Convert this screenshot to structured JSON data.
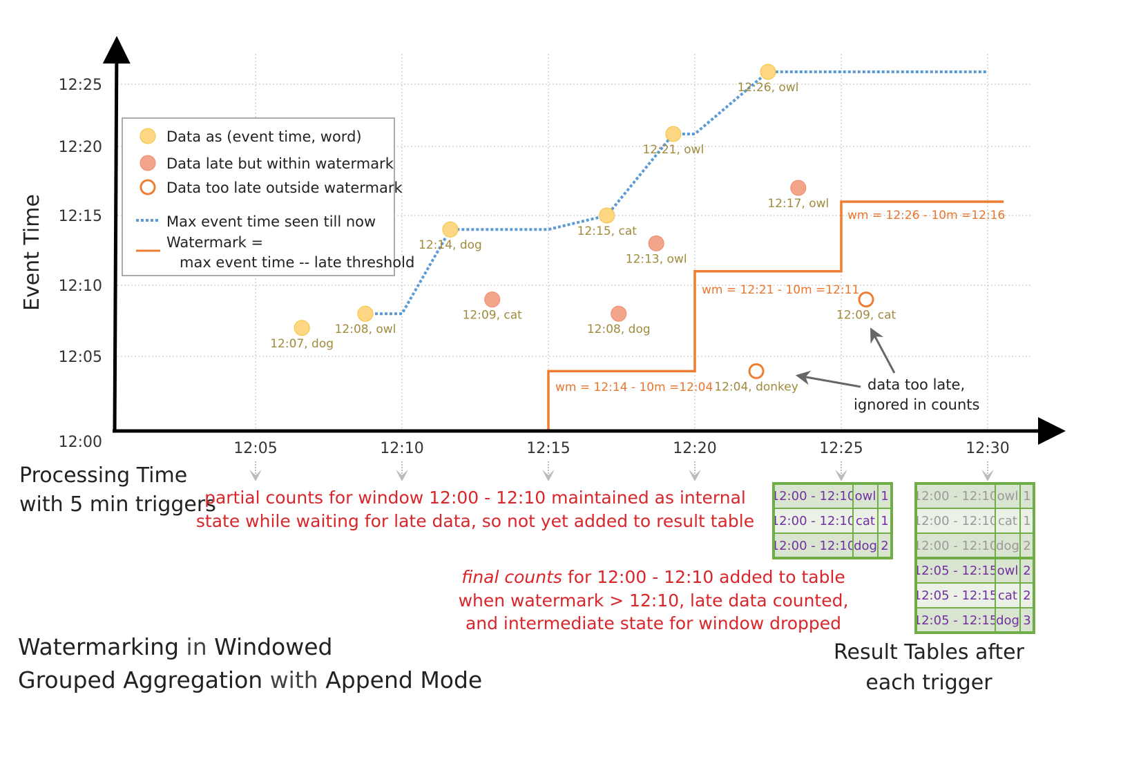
{
  "colors": {
    "on_time": "#fdd783",
    "late": "#f2a58a",
    "too_late": "#ee7d32",
    "max_line": "#5b9bd5",
    "watermark": "#ee7d32",
    "annotation_red": "#d9262b",
    "table_text": "#7030a0",
    "table_border": "#70ad47"
  },
  "axes": {
    "y_title": "Event Time",
    "x_title_line1": "Processing Time",
    "x_title_line2": "with 5 min triggers",
    "y_ticks": [
      "12:00",
      "12:05",
      "12:10",
      "12:15",
      "12:20",
      "12:25"
    ],
    "x_ticks": [
      "12:05",
      "12:10",
      "12:15",
      "12:20",
      "12:25",
      "12:30"
    ]
  },
  "legend": {
    "on_time": "Data as (event time, word)",
    "late": "Data late but within watermark",
    "too_late": "Data too late outside watermark",
    "max_line": "Max event time seen till now",
    "watermark_line1": "Watermark =",
    "watermark_line2": "max event time -- late threshold"
  },
  "points": [
    {
      "proc": "12:06:35",
      "event": "12:07",
      "kind": "on_time",
      "label": "12:07, dog"
    },
    {
      "proc": "12:08:45",
      "event": "12:08",
      "kind": "on_time",
      "label": "12:08, owl"
    },
    {
      "proc": "12:11:39",
      "event": "12:14",
      "kind": "on_time",
      "label": "12:14, dog"
    },
    {
      "proc": "12:13:05",
      "event": "12:09",
      "kind": "late",
      "label": "12:09, cat"
    },
    {
      "proc": "12:17:00",
      "event": "12:15",
      "kind": "on_time",
      "label": "12:15, cat"
    },
    {
      "proc": "12:17:24",
      "event": "12:08",
      "kind": "late",
      "label": "12:08, dog"
    },
    {
      "proc": "12:18:41",
      "event": "12:13",
      "kind": "late",
      "label": "12:13, owl"
    },
    {
      "proc": "12:19:16",
      "event": "12:21",
      "kind": "on_time",
      "label": "12:21, owl"
    },
    {
      "proc": "12:22:06",
      "event": "12:04",
      "kind": "too_late",
      "label": "12:04, donkey"
    },
    {
      "proc": "12:22:30",
      "event": "12:26",
      "kind": "on_time",
      "label": "12:26, owl"
    },
    {
      "proc": "12:23:32",
      "event": "12:17",
      "kind": "late",
      "label": "12:17, owl"
    },
    {
      "proc": "12:25:51",
      "event": "12:09",
      "kind": "too_late",
      "label": "12:09, cat"
    }
  ],
  "max_event_line": [
    [
      "12:08:45",
      "12:08"
    ],
    [
      "12:10:00",
      "12:08"
    ],
    [
      "12:11:39",
      "12:14"
    ],
    [
      "12:15:00",
      "12:14"
    ],
    [
      "12:17:00",
      "12:15"
    ],
    [
      "12:19:16",
      "12:21"
    ],
    [
      "12:20:00",
      "12:21"
    ],
    [
      "12:22:30",
      "12:26"
    ],
    [
      "12:30:00",
      "12:26"
    ]
  ],
  "watermark_line": [
    [
      "12:15:00",
      "12:00"
    ],
    [
      "12:15:00",
      "12:04"
    ],
    [
      "12:20:00",
      "12:04"
    ],
    [
      "12:20:00",
      "12:11"
    ],
    [
      "12:25:00",
      "12:11"
    ],
    [
      "12:25:00",
      "12:16"
    ],
    [
      "12:30:33",
      "12:16"
    ]
  ],
  "watermark_labels": [
    "wm = 12:14 - 10m =12:04",
    "wm = 12:21 - 10m =12:11",
    "wm = 12:26 - 10m =12:16"
  ],
  "too_late_note": [
    "data too late,",
    "ignored in counts"
  ],
  "partial_note": [
    "partial counts for window 12:00 - 12:10 maintained as internal",
    "state while waiting for late data, so not yet added  to result table"
  ],
  "final_note": {
    "emph": "final counts",
    "line1_rest": " for 12:00 - 12:10 added to table",
    "line2": "when watermark > 12:10, late data counted,",
    "line3": "and intermediate state for window dropped"
  },
  "title": {
    "w1": "Watermarking",
    "w2": " in ",
    "w3": "Windowed",
    "w4": "Grouped Aggregation",
    "w5": " with ",
    "w6": "Append Mode"
  },
  "result_caption": [
    "Result Tables after",
    "each trigger"
  ],
  "table_1225": [
    [
      "12:00 - 12:10",
      "owl",
      "1"
    ],
    [
      "12:00 - 12:10",
      "cat",
      "1"
    ],
    [
      "12:00 - 12:10",
      "dog",
      "2"
    ]
  ],
  "table_1230": {
    "old": [
      [
        "12:00 - 12:10",
        "owl",
        "1"
      ],
      [
        "12:00 - 12:10",
        "cat",
        "1"
      ],
      [
        "12:00 - 12:10",
        "dog",
        "2"
      ]
    ],
    "new": [
      [
        "12:05 - 12:15",
        "owl",
        "2"
      ],
      [
        "12:05 - 12:15",
        "cat",
        "2"
      ],
      [
        "12:05 - 12:15",
        "dog",
        "3"
      ]
    ]
  }
}
